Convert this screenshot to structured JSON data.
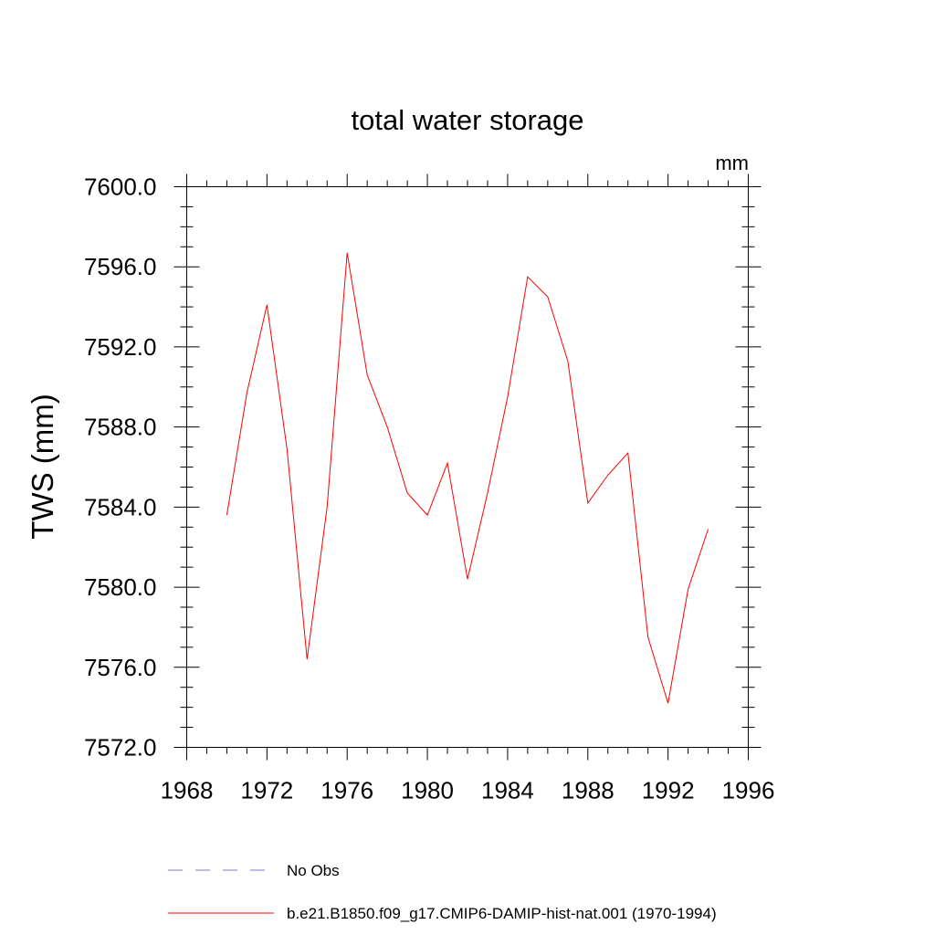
{
  "chart_data": {
    "type": "line",
    "title": "total water storage",
    "units_label": "mm",
    "xlabel": "",
    "ylabel": "TWS  (mm)",
    "xlim": [
      1968,
      1996
    ],
    "ylim": [
      7572.0,
      7600.0
    ],
    "x_ticks": [
      1968,
      1972,
      1976,
      1980,
      1984,
      1988,
      1992,
      1996
    ],
    "x_tick_labels": [
      "1968",
      "1972",
      "1976",
      "1980",
      "1984",
      "1988",
      "1992",
      "1996"
    ],
    "y_ticks": [
      7572.0,
      7576.0,
      7580.0,
      7584.0,
      7588.0,
      7592.0,
      7596.0,
      7600.0
    ],
    "y_tick_labels": [
      "7572.0",
      "7576.0",
      "7580.0",
      "7584.0",
      "7588.0",
      "7592.0",
      "7596.0",
      "7600.0"
    ],
    "grid": false,
    "legend_position": "bottom",
    "series": [
      {
        "name": "No Obs",
        "color": "#7b7bd6",
        "style": "dashed",
        "x": [],
        "values": []
      },
      {
        "name": "b.e21.B1850.f09_g17.CMIP6-DAMIP-hist-nat.001 (1970-1994)",
        "color": "#ff0000",
        "style": "solid",
        "x": [
          1970,
          1971,
          1972,
          1973,
          1974,
          1975,
          1976,
          1977,
          1978,
          1979,
          1980,
          1981,
          1982,
          1983,
          1984,
          1985,
          1986,
          1987,
          1988,
          1989,
          1990,
          1991,
          1992,
          1993,
          1994
        ],
        "values": [
          7583.6,
          7589.7,
          7594.1,
          7586.9,
          7576.4,
          7584.0,
          7596.7,
          7590.6,
          7588.0,
          7584.7,
          7583.6,
          7586.2,
          7580.4,
          7584.7,
          7589.5,
          7595.5,
          7594.5,
          7591.3,
          7584.2,
          7585.6,
          7586.7,
          7577.5,
          7574.2,
          7579.9,
          7582.9
        ]
      }
    ]
  }
}
